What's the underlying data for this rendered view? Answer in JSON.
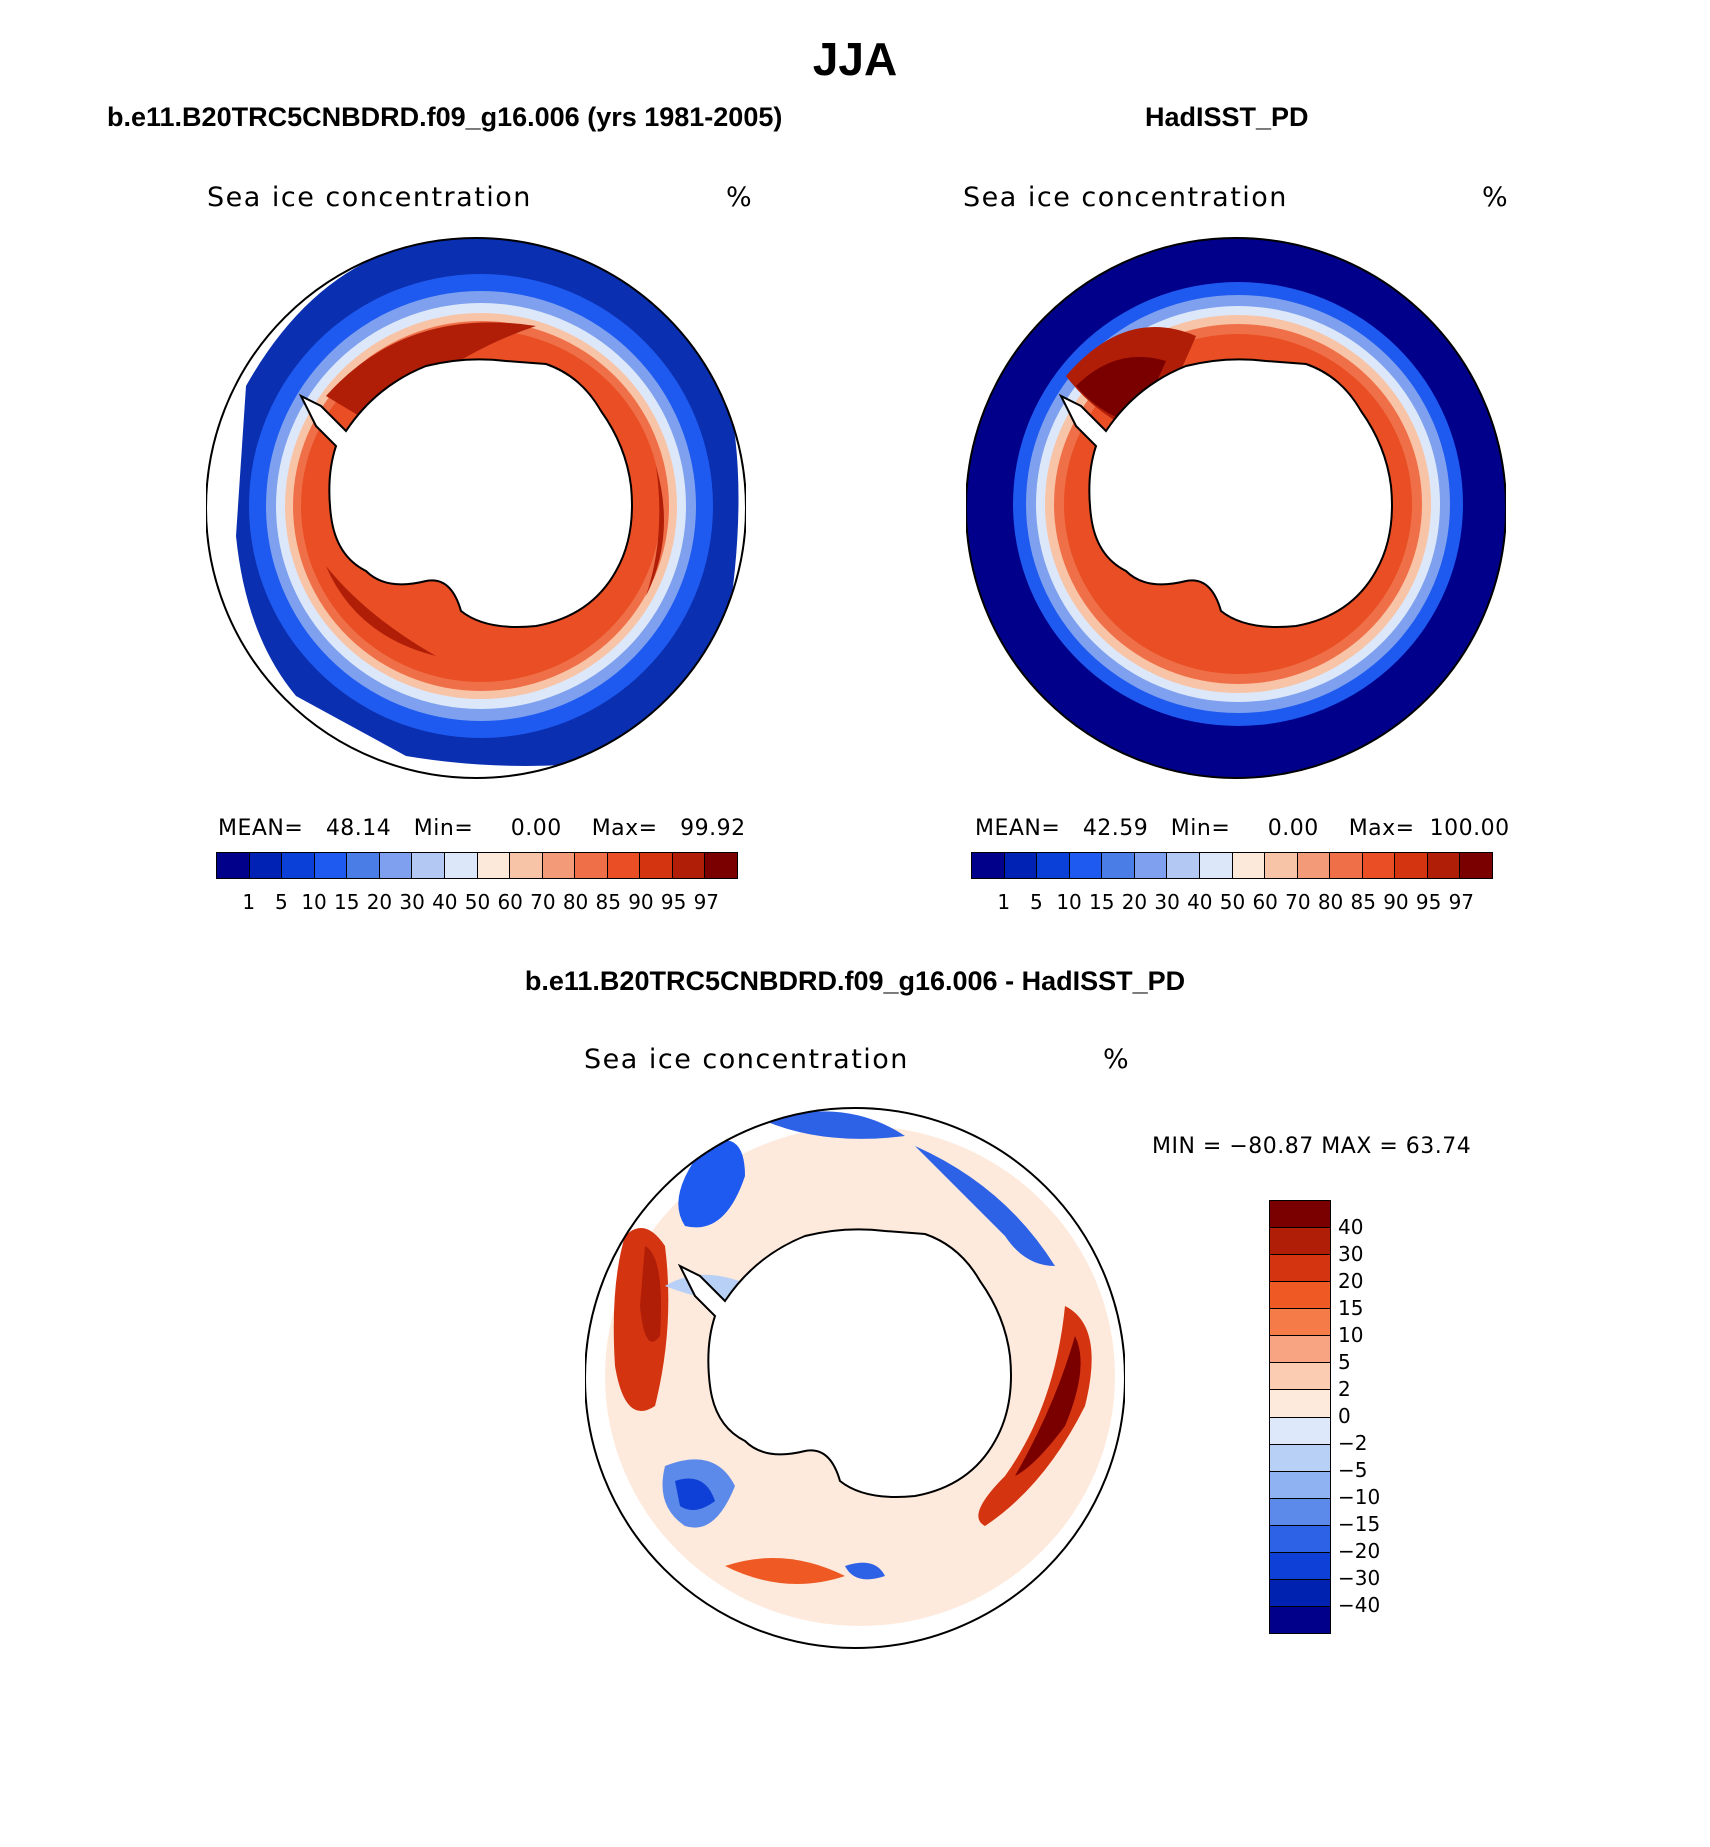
{
  "season": "JJA",
  "panels": {
    "model": {
      "title": "b.e11.B20TRC5CNBDRD.f09_g16.006 (yrs 1981-2005)",
      "variable": "Sea ice concentration",
      "units": "%",
      "mean_label": "MEAN=",
      "mean": "48.14",
      "min_label": "Min=",
      "min": "0.00",
      "max_label": "Max=",
      "max": "99.92"
    },
    "obs": {
      "title": "HadISST_PD",
      "variable": "Sea ice concentration",
      "units": "%",
      "mean_label": "MEAN=",
      "mean": "42.59",
      "min_label": "Min=",
      "min": "0.00",
      "max_label": "Max=",
      "max": "100.00"
    },
    "diff": {
      "title": "b.e11.B20TRC5CNBDRD.f09_g16.006 - HadISST_PD",
      "variable": "Sea ice concentration",
      "units": "%",
      "minmax": "MIN = −80.87  MAX =   63.74"
    }
  },
  "colorbars": {
    "concentration": {
      "levels": [
        "1",
        "5",
        "10",
        "15",
        "20",
        "30",
        "40",
        "50",
        "60",
        "70",
        "80",
        "85",
        "90",
        "95",
        "97"
      ],
      "colors": [
        "#00008b",
        "#0022b4",
        "#0a3fd8",
        "#1e5af0",
        "#4a7de6",
        "#7ea0ee",
        "#b4c8f4",
        "#dce8fa",
        "#fde9da",
        "#f8c4a8",
        "#f39a78",
        "#ef7048",
        "#e94e24",
        "#d43410",
        "#b01e08",
        "#7a0000"
      ]
    },
    "difference": {
      "levels": [
        "40",
        "30",
        "20",
        "15",
        "10",
        "5",
        "2",
        "0",
        "−2",
        "−5",
        "−10",
        "−15",
        "−20",
        "−30",
        "−40"
      ],
      "colors": [
        "#7a0000",
        "#b01e08",
        "#d43410",
        "#ef5a24",
        "#f57c48",
        "#f8a382",
        "#fbcbb2",
        "#fdeadc",
        "#dde9fa",
        "#b9d0f6",
        "#8fb2f2",
        "#5c8aea",
        "#2e62e6",
        "#0e3fd6",
        "#0022b0",
        "#00008b"
      ]
    }
  }
}
